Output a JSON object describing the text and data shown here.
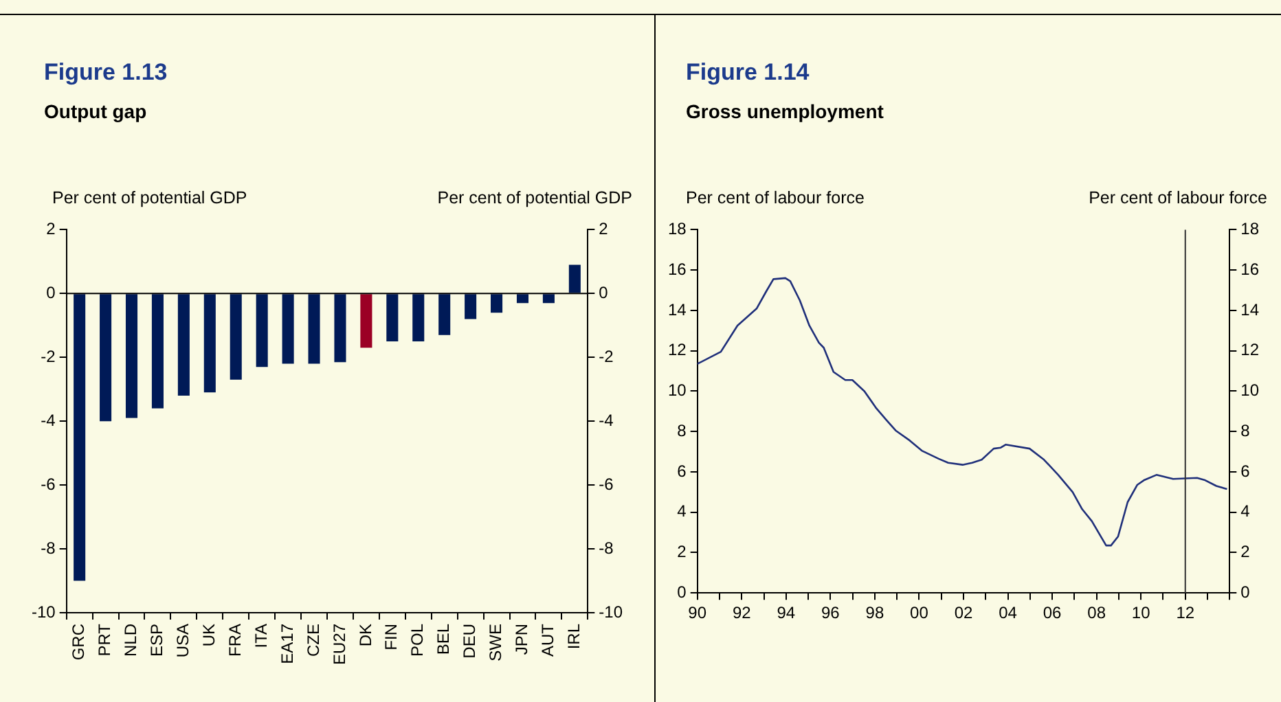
{
  "chart_data": [
    {
      "type": "bar",
      "title": "Figure 1.13",
      "subtitle": "Output gap",
      "ylabel": "Per cent of potential GDP",
      "y2label": "Per cent of potential GDP",
      "categories": [
        "GRC",
        "PRT",
        "NLD",
        "ESP",
        "USA",
        "UK",
        "FRA",
        "ITA",
        "EA17",
        "CZE",
        "EU27",
        "DK",
        "FIN",
        "POL",
        "BEL",
        "DEU",
        "SWE",
        "JPN",
        "AUT",
        "IRL"
      ],
      "values": [
        -9.0,
        -4.0,
        -3.9,
        -3.6,
        -3.2,
        -3.1,
        -2.7,
        -2.3,
        -2.2,
        -2.2,
        -2.15,
        -1.7,
        -1.5,
        -1.5,
        -1.3,
        -0.8,
        -0.6,
        -0.3,
        -0.3,
        0.9
      ],
      "colors": [
        "#001a57",
        "#001a57",
        "#001a57",
        "#001a57",
        "#001a57",
        "#001a57",
        "#001a57",
        "#001a57",
        "#001a57",
        "#001a57",
        "#001a57",
        "#9b0025",
        "#001a57",
        "#001a57",
        "#001a57",
        "#001a57",
        "#001a57",
        "#001a57",
        "#001a57",
        "#001a57"
      ],
      "ylim": [
        -10,
        2
      ],
      "yticks": [
        -10,
        -8,
        -6,
        -4,
        -2,
        0,
        2
      ],
      "y2lim": [
        -10,
        2
      ],
      "y2ticks": [
        -10,
        -8,
        -6,
        -4,
        -2,
        0,
        2
      ],
      "ref_lines": [
        {
          "axis": "y",
          "value": 0,
          "color": "#000000"
        }
      ],
      "grid": false,
      "legend": false
    },
    {
      "type": "line",
      "title": "Figure 1.14",
      "subtitle": "Gross unemployment",
      "ylabel": "Per cent of labour force",
      "y2label": "Per cent of labour force",
      "series": [
        {
          "color": "#1f2f7a",
          "x": [
            1990.0,
            1991.06,
            1991.81,
            1992.68,
            1993.11,
            1993.43,
            1993.97,
            1994.19,
            1994.62,
            1995.05,
            1995.48,
            1995.7,
            1996.14,
            1996.67,
            1996.99,
            1997.53,
            1998.07,
            1998.5,
            1998.94,
            1999.58,
            2000.12,
            2000.88,
            2001.31,
            2001.96,
            2002.39,
            2002.82,
            2003.36,
            2003.68,
            2003.9,
            2004.98,
            2005.63,
            2006.27,
            2006.92,
            2007.35,
            2007.79,
            2008.43,
            2008.65,
            2008.97,
            2009.4,
            2009.83,
            2010.16,
            2010.7,
            2011.45,
            2012.53,
            2012.86,
            2013.4,
            2013.88
          ],
          "values": [
            11.35,
            11.95,
            13.25,
            14.1,
            14.95,
            15.55,
            15.6,
            15.45,
            14.5,
            13.25,
            12.4,
            12.15,
            10.95,
            10.55,
            10.55,
            10.0,
            9.15,
            8.6,
            8.05,
            7.55,
            7.05,
            6.65,
            6.45,
            6.35,
            6.45,
            6.6,
            7.15,
            7.2,
            7.35,
            7.15,
            6.6,
            5.85,
            5.0,
            4.15,
            3.55,
            2.35,
            2.35,
            2.8,
            4.5,
            5.35,
            5.6,
            5.85,
            5.65,
            5.7,
            5.6,
            5.3,
            5.15
          ]
        }
      ],
      "xlim": [
        1990,
        2014
      ],
      "xticks": [
        {
          "value": 1990,
          "label": "90"
        },
        {
          "value": 1991,
          "label": null
        },
        {
          "value": 1992,
          "label": "92"
        },
        {
          "value": 1993,
          "label": null
        },
        {
          "value": 1994,
          "label": "94"
        },
        {
          "value": 1995,
          "label": null
        },
        {
          "value": 1996,
          "label": "96"
        },
        {
          "value": 1997,
          "label": null
        },
        {
          "value": 1998,
          "label": "98"
        },
        {
          "value": 1999,
          "label": null
        },
        {
          "value": 2000,
          "label": "00"
        },
        {
          "value": 2001,
          "label": null
        },
        {
          "value": 2002,
          "label": "02"
        },
        {
          "value": 2003,
          "label": null
        },
        {
          "value": 2004,
          "label": "04"
        },
        {
          "value": 2005,
          "label": null
        },
        {
          "value": 2006,
          "label": "06"
        },
        {
          "value": 2007,
          "label": null
        },
        {
          "value": 2008,
          "label": "08"
        },
        {
          "value": 2009,
          "label": null
        },
        {
          "value": 2010,
          "label": "10"
        },
        {
          "value": 2011,
          "label": null
        },
        {
          "value": 2012,
          "label": "12"
        },
        {
          "value": 2013,
          "label": null
        },
        {
          "value": 2014,
          "label": null
        }
      ],
      "ylim": [
        0,
        18
      ],
      "yticks": [
        0,
        2,
        4,
        6,
        8,
        10,
        12,
        14,
        16,
        18
      ],
      "y2lim": [
        0,
        18
      ],
      "y2ticks": [
        0,
        2,
        4,
        6,
        8,
        10,
        12,
        14,
        16,
        18
      ],
      "ref_lines": [
        {
          "axis": "x",
          "value": 2012,
          "color": "#333333"
        }
      ],
      "grid": false,
      "legend": false
    }
  ]
}
